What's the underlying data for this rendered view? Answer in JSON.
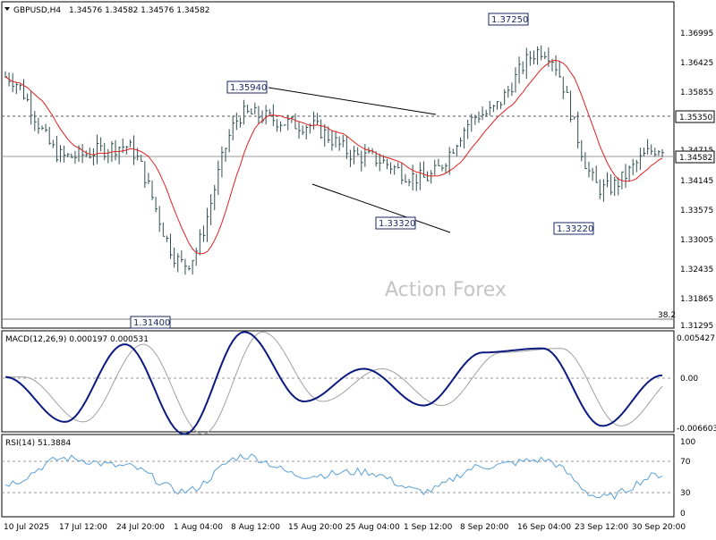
{
  "header": {
    "symbol": "GBPUSD,H4",
    "ohlc": "1.34576 1.34582 1.34576 1.34582"
  },
  "watermark": "Action Forex",
  "price_axis": {
    "ticks": [
      "1.36995",
      "1.36425",
      "1.35855",
      "1.35350",
      "1.34715",
      "1.34582",
      "1.34145",
      "1.33575",
      "1.33005",
      "1.32435",
      "1.31865",
      "1.31295"
    ]
  },
  "date_axis": {
    "labels": [
      "10 Jul 2025",
      "17 Jul 12:00",
      "24 Jul 20:00",
      "1 Aug 04:00",
      "8 Aug 12:00",
      "15 Aug 20:00",
      "25 Aug 04:00",
      "1 Sep 12:00",
      "8 Sep 20:00",
      "16 Sep 04:00",
      "23 Sep 12:00",
      "30 Sep 20:00"
    ]
  },
  "annotations": {
    "high1": "1.35940",
    "low1": "1.33320",
    "high2": "1.37250",
    "low2": "1.33220",
    "low0": "1.31400",
    "level": "1.35350",
    "current": "1.34582",
    "fib": "38.2"
  },
  "macd": {
    "title": "MACD(12,26,9) 0.000197 0.000531",
    "ticks": [
      "0.005427",
      "0.00",
      "-0.006603"
    ]
  },
  "rsi": {
    "title": "RSI(14) 51.3884",
    "ticks": [
      "100",
      "70",
      "30",
      "0"
    ]
  },
  "colors": {
    "price_bars": "#2f4f4f",
    "ma_line": "#e02020",
    "macd_line": "#0a1a80",
    "signal_line": "#a0a0a0",
    "rsi_line": "#5aa0d8",
    "annotation_box": "#1a2a66"
  },
  "chart_data": [
    {
      "type": "line",
      "title": "GBPUSD,H4",
      "series": [
        {
          "name": "GBPUSD,H4",
          "x": [
            "10 Jul 2025",
            "17 Jul 12:00",
            "24 Jul 20:00",
            "1 Aug 04:00",
            "8 Aug 12:00",
            "15 Aug 20:00",
            "25 Aug 04:00",
            "1 Sep 12:00",
            "8 Sep 20:00",
            "16 Sep 04:00",
            "23 Sep 12:00",
            "30 Sep 20:00"
          ],
          "close": [
            1.359,
            1.344,
            1.346,
            1.324,
            1.352,
            1.35,
            1.344,
            1.34,
            1.352,
            1.364,
            1.338,
            1.3458
          ]
        }
      ],
      "key_levels": [
        1.3594,
        1.3332,
        1.3725,
        1.3322,
        1.314,
        1.3535,
        1.34582
      ],
      "ylim": [
        1.312,
        1.373
      ]
    },
    {
      "type": "line",
      "title": "MACD(12,26,9) 0.000197 0.000531",
      "series": [
        {
          "name": "MACD",
          "values": [
            0.0,
            -0.0055,
            0.004,
            -0.007,
            0.0055,
            -0.003,
            0.001,
            -0.0035,
            0.003,
            0.0035,
            -0.006,
            0.0002
          ]
        }
      ],
      "ylim": [
        -0.006603,
        0.005427
      ]
    },
    {
      "type": "line",
      "title": "RSI(14) 51.3884",
      "series": [
        {
          "name": "RSI",
          "values": [
            40,
            72,
            62,
            30,
            75,
            50,
            55,
            30,
            62,
            70,
            22,
            51.3884
          ]
        }
      ],
      "ylim": [
        0,
        100
      ]
    }
  ]
}
